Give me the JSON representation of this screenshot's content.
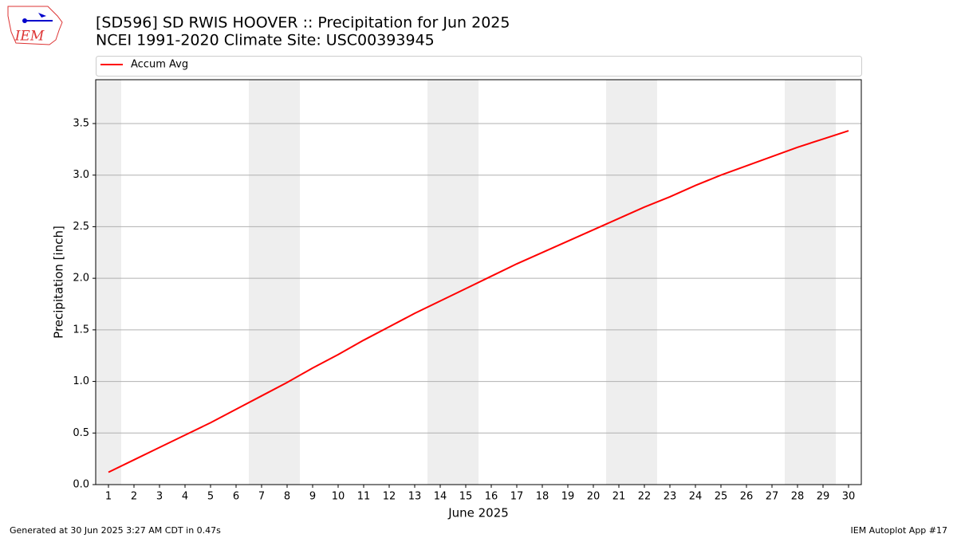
{
  "logo_text": "IEM",
  "chart_data": {
    "type": "line",
    "title": "[SD596] SD RWIS HOOVER :: Precipitation for Jun 2025",
    "subtitle": "NCEI 1991-2020 Climate Site: USC00393945",
    "x_label": "June 2025",
    "y_label": "Precipitation [inch]",
    "x": [
      1,
      2,
      3,
      4,
      5,
      6,
      7,
      8,
      9,
      10,
      11,
      12,
      13,
      14,
      15,
      16,
      17,
      18,
      19,
      20,
      21,
      22,
      23,
      24,
      25,
      26,
      27,
      28,
      29,
      30
    ],
    "series": [
      {
        "name": "Accum Avg",
        "color": "#ff0000",
        "values": [
          0.12,
          0.24,
          0.36,
          0.48,
          0.6,
          0.73,
          0.86,
          0.99,
          1.13,
          1.26,
          1.4,
          1.53,
          1.66,
          1.78,
          1.9,
          2.02,
          2.14,
          2.25,
          2.36,
          2.47,
          2.58,
          2.69,
          2.79,
          2.9,
          3.0,
          3.09,
          3.18,
          3.27,
          3.35,
          3.43
        ]
      }
    ],
    "shaded_spans": [
      [
        0.5,
        1.5
      ],
      [
        6.5,
        8.5
      ],
      [
        13.5,
        15.5
      ],
      [
        20.5,
        22.5
      ],
      [
        27.5,
        29.5
      ]
    ],
    "shade_color": "#eeeeee",
    "xlim": [
      0.5,
      30.5
    ],
    "xticks": [
      1,
      2,
      3,
      4,
      5,
      6,
      7,
      8,
      9,
      10,
      11,
      12,
      13,
      14,
      15,
      16,
      17,
      18,
      19,
      20,
      21,
      22,
      23,
      24,
      25,
      26,
      27,
      28,
      29,
      30
    ],
    "ylim": [
      0,
      3.925
    ],
    "yticks": [
      {
        "value": 0,
        "label": "0.0"
      },
      0.5,
      {
        "value": 1,
        "label": "1.0"
      },
      1.5,
      {
        "value": 2,
        "label": "2.0"
      },
      2.5,
      {
        "value": 3,
        "label": "3.0"
      },
      3.5
    ],
    "grid": true,
    "legend": "top",
    "footer_left": "Generated at 30 Jun 2025 3:27 AM CDT in 0.47s",
    "footer_right": "IEM Autoplot App #17"
  }
}
